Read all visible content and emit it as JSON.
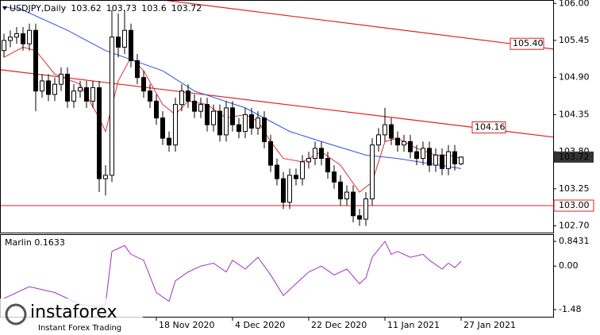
{
  "chart_data": {
    "type": "candlestick",
    "title": "USDJPY,Daily",
    "open": [
      105.3,
      105.45,
      105.5,
      105.55,
      105.4,
      105.6,
      104.7,
      104.85,
      104.65,
      104.8,
      104.95,
      104.55,
      104.7,
      104.75,
      104.55,
      104.75,
      103.4,
      103.45,
      105.5,
      105.35,
      105.6,
      105.15,
      104.9,
      104.7,
      104.55,
      104.3,
      104.0,
      103.9,
      104.5,
      104.7,
      104.55,
      104.4,
      104.5,
      104.2,
      104.4,
      104.05,
      104.45,
      104.2,
      104.1,
      104.35,
      104.15,
      104.3,
      103.95,
      103.6,
      103.4,
      103.05,
      103.45,
      103.4,
      103.65,
      103.7,
      103.85,
      103.7,
      103.5,
      103.35,
      103.1,
      103.2,
      102.85,
      102.8,
      103.1,
      103.9,
      104.05,
      104.2,
      104.0,
      103.9,
      103.95,
      103.8,
      103.7,
      103.85,
      103.6,
      103.75,
      103.55,
      103.8,
      103.62
    ],
    "high": [
      105.55,
      105.6,
      105.65,
      105.65,
      105.7,
      105.7,
      104.95,
      104.95,
      104.9,
      105.05,
      105.05,
      104.8,
      104.85,
      104.85,
      104.85,
      104.85,
      103.6,
      105.9,
      105.85,
      105.9,
      105.7,
      105.25,
      105.0,
      104.8,
      104.65,
      104.4,
      104.1,
      104.6,
      104.8,
      104.8,
      104.65,
      104.6,
      104.6,
      104.5,
      104.5,
      104.55,
      104.55,
      104.3,
      104.45,
      104.45,
      104.4,
      104.4,
      104.05,
      103.7,
      103.5,
      103.55,
      103.55,
      103.75,
      103.8,
      103.95,
      103.95,
      103.8,
      103.6,
      103.45,
      103.3,
      103.3,
      102.95,
      103.2,
      104.0,
      104.15,
      104.45,
      104.3,
      104.1,
      104.05,
      104.05,
      103.9,
      103.95,
      103.95,
      103.85,
      103.85,
      103.9,
      103.9,
      103.73
    ],
    "low": [
      105.2,
      105.35,
      105.4,
      105.3,
      105.3,
      104.4,
      104.6,
      104.55,
      104.55,
      104.7,
      104.45,
      104.45,
      104.6,
      104.45,
      104.45,
      103.2,
      103.15,
      103.35,
      105.2,
      105.25,
      105.05,
      104.8,
      104.6,
      104.45,
      104.2,
      103.9,
      103.8,
      103.8,
      104.4,
      104.45,
      104.3,
      104.3,
      104.1,
      104.1,
      103.95,
      103.95,
      104.1,
      104.0,
      104.0,
      104.05,
      104.05,
      103.85,
      103.5,
      103.3,
      102.95,
      102.95,
      103.3,
      103.3,
      103.55,
      103.6,
      103.6,
      103.4,
      103.25,
      103.0,
      103.0,
      102.75,
      102.7,
      102.7,
      103.0,
      103.8,
      103.95,
      103.9,
      103.8,
      103.8,
      103.7,
      103.6,
      103.6,
      103.5,
      103.5,
      103.45,
      103.45,
      103.52,
      103.6
    ],
    "close": [
      105.45,
      105.5,
      105.55,
      105.4,
      105.6,
      104.7,
      104.85,
      104.65,
      104.8,
      104.95,
      104.55,
      104.7,
      104.75,
      104.55,
      104.75,
      103.4,
      103.45,
      105.5,
      105.35,
      105.6,
      105.15,
      104.9,
      104.7,
      104.55,
      104.3,
      104.0,
      103.9,
      104.5,
      104.7,
      104.55,
      104.4,
      104.5,
      104.2,
      104.4,
      104.05,
      104.45,
      104.2,
      104.1,
      104.35,
      104.15,
      104.3,
      103.95,
      103.6,
      103.4,
      103.05,
      103.45,
      103.4,
      103.65,
      103.7,
      103.85,
      103.7,
      103.5,
      103.35,
      103.1,
      103.2,
      102.85,
      102.8,
      103.1,
      103.9,
      104.05,
      104.2,
      104.0,
      103.9,
      103.95,
      103.8,
      103.7,
      103.85,
      103.6,
      103.75,
      103.55,
      103.8,
      103.62,
      103.72
    ],
    "lines": [
      {
        "color": "#e03030",
        "x": [
          0,
          3,
          5,
          8,
          12,
          15,
          16,
          18,
          20,
          22,
          25,
          27,
          29,
          32,
          35,
          38,
          40,
          42,
          44,
          47,
          50,
          53,
          56,
          58,
          60,
          62,
          65,
          68,
          70,
          72
        ],
        "values": [
          105.2,
          105.35,
          105.3,
          104.95,
          104.8,
          104.3,
          104.1,
          104.85,
          105.2,
          105.0,
          104.5,
          104.35,
          104.55,
          104.5,
          104.3,
          104.35,
          104.25,
          103.95,
          103.7,
          103.65,
          103.8,
          103.6,
          103.2,
          103.35,
          103.95,
          104.0,
          103.85,
          103.75,
          103.75,
          103.7
        ]
      },
      {
        "color": "#3050e0",
        "x": [
          0,
          3,
          10,
          16,
          25,
          30,
          38,
          45,
          50,
          57,
          62,
          72
        ],
        "values": [
          105.95,
          105.9,
          105.6,
          105.3,
          105.0,
          104.7,
          104.45,
          104.1,
          103.95,
          103.75,
          103.7,
          103.55
        ]
      }
    ],
    "trendlines": [
      {
        "color": "#e02020",
        "x": [
          25,
          80
        ],
        "values": [
          106.05,
          105.4
        ],
        "label": "105.40"
      },
      {
        "color": "#e02020",
        "x": [
          0,
          74
        ],
        "values": [
          105.01,
          104.16
        ],
        "label": "104.16"
      }
    ],
    "levels": [
      {
        "color": "#e02020",
        "value": 103.0,
        "label": "103.00"
      }
    ],
    "ylim": [
      102.6,
      106.05
    ],
    "yticks": [
      {
        "value": 106,
        "label": "106.00"
      },
      {
        "value": 105.45,
        "label": "105.45"
      },
      {
        "value": 104.9,
        "label": "104.90"
      },
      {
        "value": 104.35,
        "label": "104.35"
      },
      {
        "value": 103.8,
        "label": "103.80"
      },
      {
        "value": 103.25,
        "label": "103.25"
      },
      {
        "value": 102.7,
        "label": "102.70"
      }
    ],
    "xticks": [
      {
        "value": 24,
        "label": "18 Nov 2020"
      },
      {
        "value": 36,
        "label": "4 Dec 2020"
      },
      {
        "value": 48,
        "label": "22 Dec 2020"
      },
      {
        "value": 60,
        "label": "11 Jan 2021"
      },
      {
        "value": 72,
        "label": "27 Jan 2021"
      }
    ],
    "indicator": {
      "title": "Marlin 0.1633",
      "color": "#a030c0",
      "x": [
        0,
        4,
        8,
        12,
        15,
        16,
        17,
        18,
        19,
        20,
        22,
        24,
        26,
        27,
        29,
        31,
        33,
        35,
        36,
        38,
        40,
        42,
        44,
        46,
        48,
        50,
        52,
        54,
        56,
        57,
        58,
        60,
        61,
        62,
        64,
        66,
        67,
        69,
        70,
        71,
        72
      ],
      "values": [
        -1.1,
        -0.7,
        -0.9,
        -1.3,
        -1.4,
        -1.3,
        0.5,
        0.6,
        0.7,
        0.4,
        0.2,
        -0.9,
        -1.2,
        -0.5,
        -0.2,
        0.0,
        0.1,
        -0.2,
        0.2,
        -0.1,
        0.3,
        -0.3,
        -1.0,
        -0.6,
        -0.2,
        0.0,
        -0.3,
        -0.1,
        -0.6,
        -0.4,
        0.3,
        0.84,
        0.4,
        0.5,
        0.3,
        0.4,
        0.2,
        -0.1,
        0.1,
        -0.05,
        0.1633
      ],
      "ylim": [
        -1.48,
        0.8431
      ],
      "yticks": [
        0.8431,
        {
          "value": 0,
          "label": "0.00"
        },
        -1.48
      ]
    },
    "watermark": {
      "brand": "instaforex",
      "tagline": "Instant Forex Trading"
    }
  }
}
